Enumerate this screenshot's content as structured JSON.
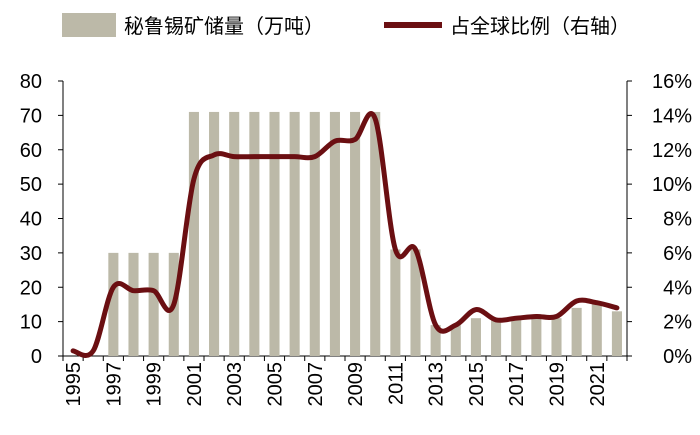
{
  "chart_data": {
    "type": "bar+line",
    "x": [
      1995,
      1996,
      1997,
      1998,
      1999,
      2000,
      2001,
      2002,
      2003,
      2004,
      2005,
      2006,
      2007,
      2008,
      2009,
      2010,
      2011,
      2012,
      2013,
      2014,
      2015,
      2016,
      2017,
      2018,
      2019,
      2020,
      2021,
      2022
    ],
    "x_tick_labels": [
      "1995",
      "1997",
      "1999",
      "2001",
      "2003",
      "2005",
      "2007",
      "2009",
      "2011",
      "2013",
      "2015",
      "2017",
      "2019",
      "2021"
    ],
    "series": [
      {
        "name": "秘鲁锡矿储量（万吨）",
        "type": "bar",
        "axis": "left",
        "color": "#bcb9a8",
        "values": [
          0,
          0,
          30,
          30,
          30,
          30,
          71,
          71,
          71,
          71,
          71,
          71,
          71,
          71,
          71,
          71,
          31,
          31,
          9,
          9,
          11,
          11,
          11,
          11,
          11,
          14,
          15,
          13
        ]
      },
      {
        "name": "占全球比例（右轴）",
        "type": "line",
        "axis": "right",
        "color": "#6b0f12",
        "values": [
          0.3,
          0.3,
          4.0,
          3.8,
          3.8,
          3.0,
          10.3,
          11.7,
          11.6,
          11.6,
          11.6,
          11.6,
          11.6,
          12.5,
          12.6,
          13.8,
          6.2,
          6.2,
          1.8,
          1.8,
          2.7,
          2.1,
          2.2,
          2.3,
          2.3,
          3.2,
          3.1,
          2.8
        ]
      }
    ],
    "y_left": {
      "ylim": [
        0,
        80
      ],
      "ticks": [
        "0",
        "10",
        "20",
        "30",
        "40",
        "50",
        "60",
        "70",
        "80"
      ]
    },
    "y_right": {
      "ylim": [
        0,
        16
      ],
      "ticks": [
        "0%",
        "2%",
        "4%",
        "6%",
        "8%",
        "10%",
        "12%",
        "14%",
        "16%"
      ]
    },
    "legend": {
      "placement": "top",
      "bar_label": "秘鲁锡矿储量（万吨）",
      "line_label": "占全球比例（右轴）"
    }
  }
}
